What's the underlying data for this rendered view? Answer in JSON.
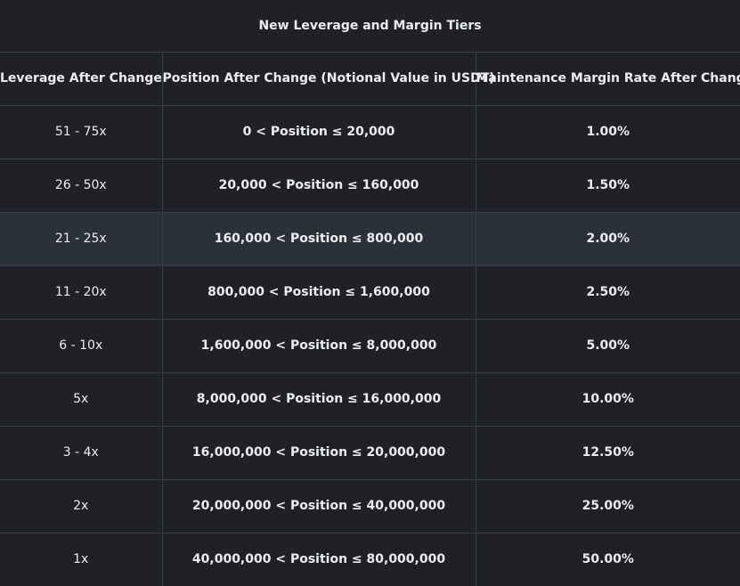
{
  "table": {
    "title": "New Leverage and Margin Tiers",
    "headers": [
      "Leverage After Change",
      "Position After Change (Notional Value in USDT)",
      "Maintenance Margin Rate After Change"
    ],
    "rows": [
      {
        "leverage": "51 - 75x",
        "position": "0 < Position ≤ 20,000",
        "margin": "1.00%"
      },
      {
        "leverage": "26 - 50x",
        "position": "20,000 < Position ≤ 160,000",
        "margin": "1.50%"
      },
      {
        "leverage": "21 - 25x",
        "position": "160,000 < Position ≤ 800,000",
        "margin": "2.00%"
      },
      {
        "leverage": "11 - 20x",
        "position": "800,000 < Position ≤ 1,600,000",
        "margin": "2.50%"
      },
      {
        "leverage": "6 - 10x",
        "position": "1,600,000 < Position ≤ 8,000,000",
        "margin": "5.00%"
      },
      {
        "leverage": "5x",
        "position": "8,000,000 < Position ≤ 16,000,000",
        "margin": "10.00%"
      },
      {
        "leverage": "3 - 4x",
        "position": "16,000,000 < Position ≤ 20,000,000",
        "margin": "12.50%"
      },
      {
        "leverage": "2x",
        "position": "20,000,000 < Position ≤ 40,000,000",
        "margin": "25.00%"
      },
      {
        "leverage": "1x",
        "position": "40,000,000 < Position ≤ 80,000,000",
        "margin": "50.00%"
      }
    ],
    "highlighted_row": 2,
    "colors": {
      "background": "#1f2126",
      "highlight": "#2b3139",
      "border": "#3a3d44",
      "text": "#eaecef"
    }
  }
}
